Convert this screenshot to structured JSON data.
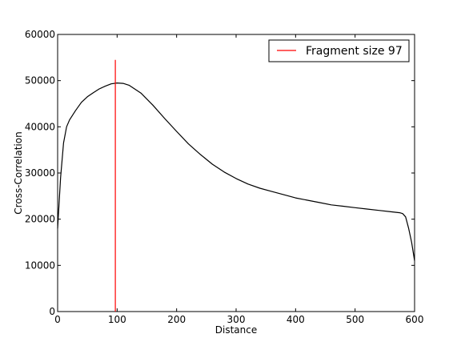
{
  "chart_data": {
    "type": "line",
    "title": "",
    "xlabel": "Distance",
    "ylabel": "Cross-Correlation",
    "xlim": [
      0,
      600
    ],
    "ylim": [
      0,
      60000
    ],
    "xticks": [
      0,
      100,
      200,
      300,
      400,
      500,
      600
    ],
    "yticks": [
      0,
      10000,
      20000,
      30000,
      40000,
      50000,
      60000
    ],
    "grid": false,
    "legend_position": "top-right",
    "series": [
      {
        "name": "",
        "color": "#000000",
        "x": [
          0,
          5,
          10,
          15,
          20,
          30,
          40,
          50,
          60,
          70,
          80,
          90,
          100,
          110,
          120,
          140,
          160,
          180,
          200,
          220,
          240,
          260,
          280,
          300,
          320,
          340,
          360,
          380,
          400,
          420,
          440,
          460,
          480,
          500,
          520,
          540,
          560,
          575,
          580,
          585,
          590,
          595,
          600
        ],
        "y": [
          18000,
          29000,
          36500,
          40000,
          41500,
          43500,
          45300,
          46500,
          47400,
          48200,
          48800,
          49300,
          49500,
          49400,
          49000,
          47300,
          44700,
          41800,
          39000,
          36300,
          34000,
          31900,
          30200,
          28800,
          27600,
          26700,
          26000,
          25300,
          24600,
          24100,
          23600,
          23100,
          22800,
          22500,
          22200,
          21900,
          21600,
          21400,
          21200,
          20500,
          18000,
          15000,
          11000
        ]
      }
    ],
    "vline": {
      "label": "Fragment size 97",
      "x": 97,
      "y0": 0,
      "y1": 54500,
      "color": "#ff0000"
    }
  }
}
